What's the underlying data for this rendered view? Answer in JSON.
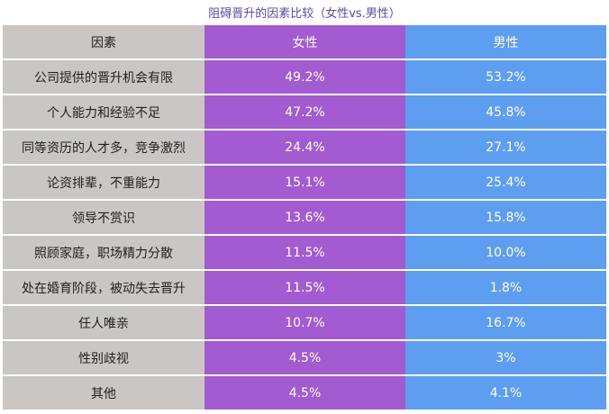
{
  "chart_data": {
    "type": "table",
    "title": "阻碍晋升的因素比较（女性vs.男性）",
    "columns": [
      "因素",
      "女性",
      "男性"
    ],
    "rows": [
      [
        "公司提供的晋升机会有限",
        "49.2%",
        "53.2%"
      ],
      [
        "个人能力和经验不足",
        "47.2%",
        "45.8%"
      ],
      [
        "同等资历的人才多，竞争激烈",
        "24.4%",
        "27.1%"
      ],
      [
        "论资排辈，不重能力",
        "15.1%",
        "25.4%"
      ],
      [
        "领导不赏识",
        "13.6%",
        "15.8%"
      ],
      [
        "照顾家庭，职场精力分散",
        "11.5%",
        "10.0%"
      ],
      [
        "处在婚育阶段，被动失去晋升",
        "11.5%",
        "1.8%"
      ],
      [
        "任人唯亲",
        "10.7%",
        "16.7%"
      ],
      [
        "性别歧视",
        "4.5%",
        "3%"
      ],
      [
        "其他",
        "4.5%",
        "4.1%"
      ]
    ]
  },
  "colors": {
    "factor_column": "#c9c6c4",
    "female_column": "#a25bd0",
    "male_column": "#5e9ef0",
    "title_text": "#5b4aa6"
  }
}
